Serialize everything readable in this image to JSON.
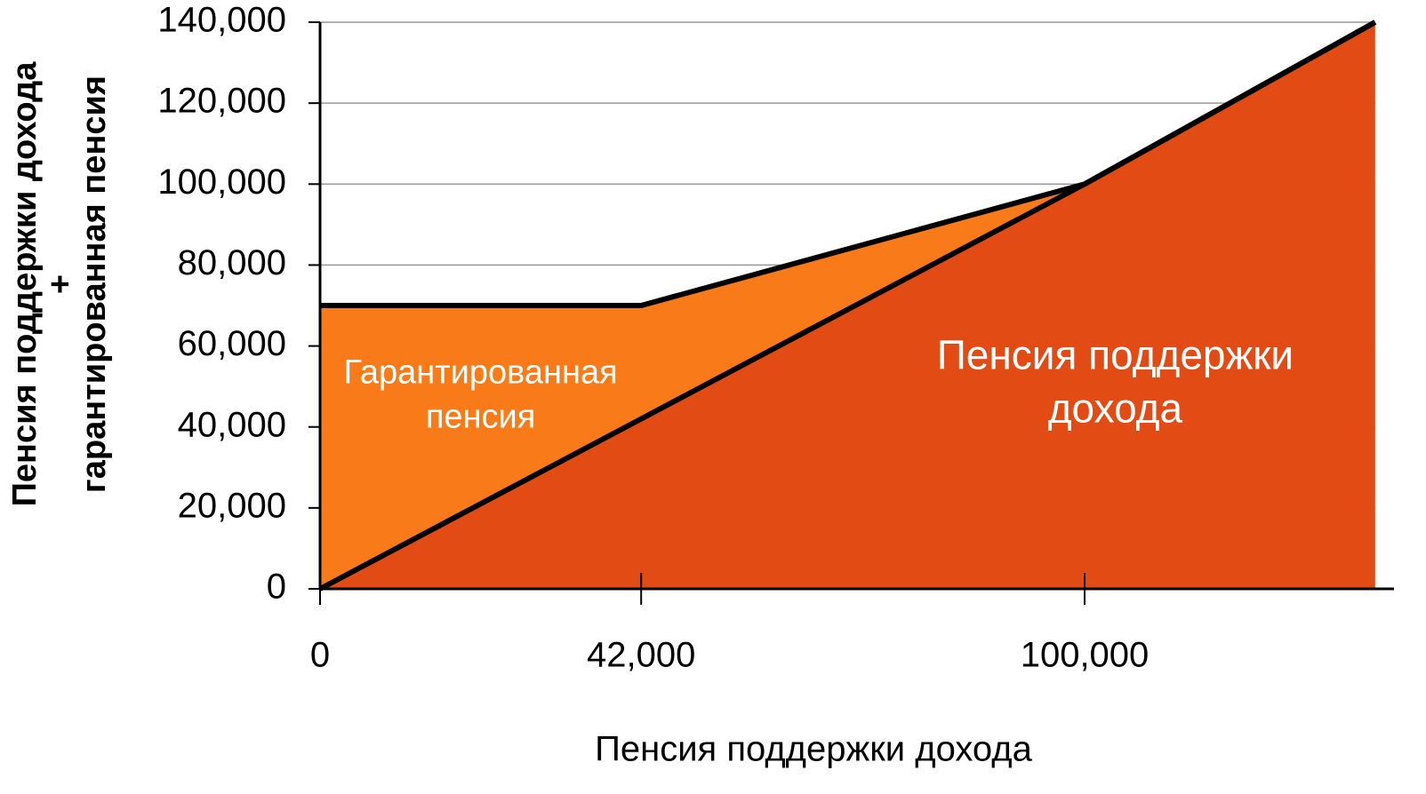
{
  "chart_data": {
    "type": "stacked_area",
    "x_label": "Пенсия поддержки дохода",
    "y_label": [
      "Пенсия поддержки дохода",
      "+",
      "гарантированная пенсия"
    ],
    "x": [
      0,
      42000,
      100000,
      138000
    ],
    "series": [
      {
        "color": "#e24b14",
        "values": [
          0,
          42000,
          100000,
          140000
        ]
      },
      {
        "color": "#f97a18",
        "values": [
          70000,
          28000,
          0,
          0
        ]
      }
    ],
    "annotations": [
      {
        "lines": [
          "Гарантированная",
          "пенсия"
        ],
        "x": 21000,
        "y": 53000,
        "color": "#ffffff"
      },
      {
        "lines": [
          "Пенсия поддержки",
          "дохода"
        ],
        "x": 104000,
        "y": 57000,
        "color": "#ffffff"
      }
    ],
    "xlim": [
      0,
      140000
    ],
    "ylim": [
      0,
      140000
    ],
    "xticks": [
      0,
      {
        "value": 42000,
        "label": "42,000"
      },
      {
        "value": 100000,
        "label": "100,000"
      }
    ],
    "yticks": [
      0,
      {
        "value": 20000,
        "label": "20,000"
      },
      {
        "value": 40000,
        "label": "40,000"
      },
      {
        "value": 60000,
        "label": "60,000"
      },
      {
        "value": 80000,
        "label": "80,000"
      },
      {
        "value": 100000,
        "label": "100,000"
      },
      {
        "value": 120000,
        "label": "120,000"
      },
      {
        "value": 140000,
        "label": "140,000"
      }
    ],
    "grid": true
  }
}
